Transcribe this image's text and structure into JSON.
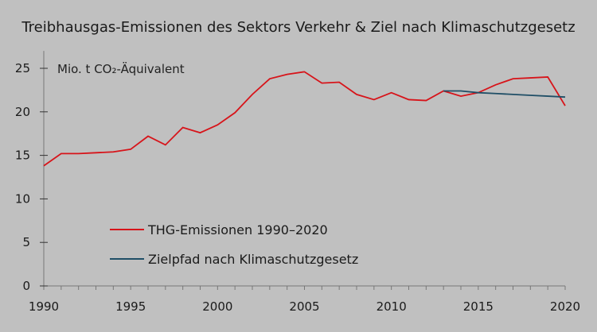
{
  "chart_data": {
    "type": "line",
    "title": "Treibhausgas-Emissionen des Sektors Verkehr & Ziel nach Klimaschutzgesetz",
    "ylabel": "Mio. t CO₂-Äquivalent",
    "xlabel": "",
    "xlim": [
      1990,
      2020
    ],
    "ylim": [
      0,
      27
    ],
    "xticks": [
      1990,
      1995,
      2000,
      2005,
      2010,
      2015,
      2020
    ],
    "yticks": [
      0,
      5,
      10,
      15,
      20,
      25
    ],
    "grid": false,
    "legend_position": "bottom-left",
    "series": [
      {
        "name": "THG-Emissionen 1990–2020",
        "color": "#d7141a",
        "x": [
          1990,
          1991,
          1992,
          1993,
          1994,
          1995,
          1996,
          1997,
          1998,
          1999,
          2000,
          2001,
          2002,
          2003,
          2004,
          2005,
          2006,
          2007,
          2008,
          2009,
          2010,
          2011,
          2012,
          2013,
          2014,
          2015,
          2016,
          2017,
          2018,
          2019,
          2020
        ],
        "y": [
          13.8,
          15.2,
          15.2,
          15.3,
          15.4,
          15.7,
          17.2,
          16.2,
          18.2,
          17.6,
          18.5,
          19.9,
          22.0,
          23.8,
          24.3,
          24.6,
          23.3,
          23.4,
          22.0,
          21.4,
          22.2,
          21.4,
          21.3,
          22.4,
          21.8,
          22.2,
          23.1,
          23.8,
          23.9,
          24.0,
          20.7
        ]
      },
      {
        "name": "Zielpfad nach Klimaschutzgesetz",
        "color": "#1f4e66",
        "x": [
          2013,
          2014,
          2015,
          2016,
          2017,
          2018,
          2019,
          2020
        ],
        "y": [
          22.4,
          22.4,
          22.2,
          22.1,
          22.0,
          21.9,
          21.8,
          21.7
        ]
      }
    ]
  }
}
